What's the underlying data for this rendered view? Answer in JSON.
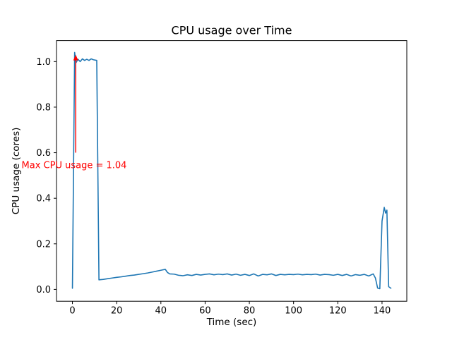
{
  "figure": {
    "background": "#ffffff"
  },
  "chart_data": {
    "type": "line",
    "title": "CPU usage over Time",
    "xlabel": "Time (sec)",
    "ylabel": "CPU usage (cores)",
    "line_color": "#1f77b4",
    "grid": false,
    "legend": null,
    "xlim": [
      -7.2,
      151.2
    ],
    "ylim": [
      -0.052,
      1.092
    ],
    "x_ticks": {
      "values": [
        0,
        20,
        40,
        60,
        80,
        100,
        120,
        140
      ],
      "labels": [
        "0",
        "20",
        "40",
        "60",
        "80",
        "100",
        "120",
        "140"
      ]
    },
    "y_ticks": {
      "values": [
        0.0,
        0.2,
        0.4,
        0.6,
        0.8,
        1.0
      ],
      "labels": [
        "0.0",
        "0.2",
        "0.4",
        "0.6",
        "0.8",
        "1.0"
      ]
    },
    "points": [
      [
        0,
        0.005
      ],
      [
        1,
        1.04
      ],
      [
        1.6,
        0.995
      ],
      [
        2.5,
        1.01
      ],
      [
        3.5,
        1.0
      ],
      [
        4.5,
        1.012
      ],
      [
        5.5,
        1.005
      ],
      [
        6.5,
        1.01
      ],
      [
        7.5,
        1.005
      ],
      [
        8.5,
        1.012
      ],
      [
        9.5,
        1.008
      ],
      [
        11,
        1.005
      ],
      [
        12,
        0.042
      ],
      [
        14,
        0.044
      ],
      [
        16,
        0.047
      ],
      [
        18,
        0.05
      ],
      [
        20,
        0.053
      ],
      [
        22,
        0.055
      ],
      [
        24,
        0.058
      ],
      [
        26,
        0.061
      ],
      [
        28,
        0.063
      ],
      [
        30,
        0.066
      ],
      [
        32,
        0.069
      ],
      [
        34,
        0.072
      ],
      [
        36,
        0.076
      ],
      [
        38,
        0.08
      ],
      [
        40,
        0.084
      ],
      [
        42,
        0.088
      ],
      [
        43,
        0.074
      ],
      [
        44,
        0.068
      ],
      [
        46,
        0.067
      ],
      [
        48,
        0.062
      ],
      [
        50,
        0.06
      ],
      [
        52,
        0.064
      ],
      [
        54,
        0.061
      ],
      [
        56,
        0.066
      ],
      [
        58,
        0.063
      ],
      [
        60,
        0.066
      ],
      [
        62,
        0.068
      ],
      [
        64,
        0.064
      ],
      [
        66,
        0.067
      ],
      [
        68,
        0.065
      ],
      [
        70,
        0.068
      ],
      [
        72,
        0.063
      ],
      [
        74,
        0.067
      ],
      [
        76,
        0.062
      ],
      [
        78,
        0.066
      ],
      [
        80,
        0.061
      ],
      [
        82,
        0.068
      ],
      [
        84,
        0.059
      ],
      [
        86,
        0.066
      ],
      [
        88,
        0.064
      ],
      [
        90,
        0.068
      ],
      [
        92,
        0.061
      ],
      [
        94,
        0.066
      ],
      [
        96,
        0.064
      ],
      [
        98,
        0.066
      ],
      [
        100,
        0.065
      ],
      [
        102,
        0.067
      ],
      [
        104,
        0.064
      ],
      [
        106,
        0.066
      ],
      [
        108,
        0.065
      ],
      [
        110,
        0.067
      ],
      [
        112,
        0.063
      ],
      [
        114,
        0.066
      ],
      [
        116,
        0.065
      ],
      [
        118,
        0.062
      ],
      [
        120,
        0.066
      ],
      [
        122,
        0.061
      ],
      [
        124,
        0.066
      ],
      [
        126,
        0.059
      ],
      [
        128,
        0.065
      ],
      [
        130,
        0.062
      ],
      [
        132,
        0.066
      ],
      [
        134,
        0.059
      ],
      [
        136,
        0.068
      ],
      [
        137,
        0.05
      ],
      [
        138,
        0.006
      ],
      [
        139,
        0.003
      ],
      [
        140,
        0.3
      ],
      [
        141,
        0.36
      ],
      [
        141.6,
        0.335
      ],
      [
        142.2,
        0.348
      ],
      [
        143,
        0.012
      ],
      [
        144,
        0.005
      ]
    ],
    "annotation": {
      "text": "Max CPU usage = 1.04",
      "color": "#ff0000",
      "arrow": {
        "x": 1.5,
        "y_from": 0.6,
        "y_to": 1.03
      },
      "text_pos": {
        "x": -23,
        "y": 0.545
      }
    }
  }
}
